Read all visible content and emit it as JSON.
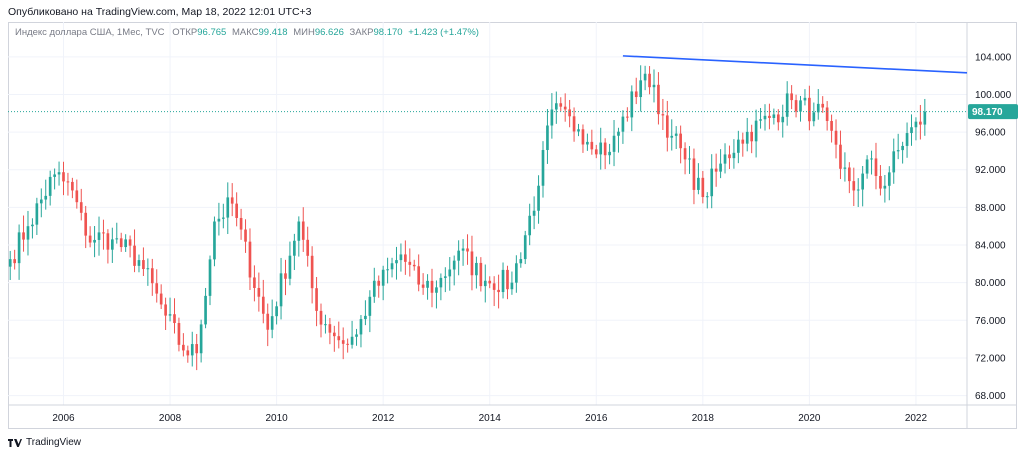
{
  "header": {
    "published": "Опубликовано на TradingView.com, Мар 18, 2022 12:01 UTC+3"
  },
  "legend": {
    "symbol": "Индекс доллара США, 1Мес, TVC",
    "open_label": "ОТКР",
    "open_value": "96.765",
    "high_label": "МАКС",
    "high_value": "99.418",
    "low_label": "МИН",
    "low_value": "96.626",
    "close_label": "ЗАКР",
    "close_value": "98.170",
    "change": "+1.423 (+1.47%)"
  },
  "footer": {
    "brand": "TradingView"
  },
  "colors": {
    "up": "#26a69a",
    "down": "#ef5350",
    "trendline": "#2962ff",
    "price_label_bg": "#26a69a"
  },
  "chart_data": {
    "type": "candlestick",
    "interval": "1 month",
    "x_range": [
      "2005-01",
      "2023-01"
    ],
    "ylim": [
      67,
      106
    ],
    "y_ticks": [
      "104.000",
      "100.000",
      "96.000",
      "92.000",
      "88.000",
      "84.000",
      "80.000",
      "76.000",
      "72.000",
      "68.000"
    ],
    "y_tick_values": [
      104,
      100,
      96,
      92,
      88,
      84,
      80,
      76,
      72,
      68
    ],
    "x_ticks": [
      "2006",
      "2008",
      "2010",
      "2012",
      "2014",
      "2016",
      "2018",
      "2020",
      "2022"
    ],
    "x_tick_years": [
      2006,
      2008,
      2010,
      2012,
      2014,
      2016,
      2018,
      2020,
      2022
    ],
    "last_price": {
      "value": 98.17,
      "label": "98.170"
    },
    "trendline": {
      "start": {
        "date": "2016-07",
        "value": 104.1
      },
      "end": {
        "date": "2023-01",
        "value": 102.3
      }
    },
    "anchors": [
      [
        "2005-01",
        82.5
      ],
      [
        "2005-05",
        86.0
      ],
      [
        "2005-11",
        91.5
      ],
      [
        "2006-03",
        89.8
      ],
      [
        "2006-06",
        85.0
      ],
      [
        "2006-12",
        84.6
      ],
      [
        "2007-06",
        82.4
      ],
      [
        "2007-12",
        76.5
      ],
      [
        "2008-04",
        72.8
      ],
      [
        "2008-07",
        72.5
      ],
      [
        "2008-11",
        86.5
      ],
      [
        "2009-03",
        88.4
      ],
      [
        "2009-11",
        75.0
      ],
      [
        "2010-06",
        86.5
      ],
      [
        "2010-10",
        77.0
      ],
      [
        "2011-04",
        73.5
      ],
      [
        "2011-07",
        74.5
      ],
      [
        "2011-10",
        78.5
      ],
      [
        "2012-05",
        83.0
      ],
      [
        "2012-09",
        79.8
      ],
      [
        "2013-01",
        79.5
      ],
      [
        "2013-06",
        83.4
      ],
      [
        "2013-12",
        80.2
      ],
      [
        "2014-06",
        80.0
      ],
      [
        "2014-12",
        90.3
      ],
      [
        "2015-03",
        98.4
      ],
      [
        "2015-09",
        96.3
      ],
      [
        "2016-04",
        93.9
      ],
      [
        "2016-11",
        101.5
      ],
      [
        "2016-12",
        102.2
      ],
      [
        "2017-06",
        95.6
      ],
      [
        "2017-09",
        93.1
      ],
      [
        "2018-01",
        89.1
      ],
      [
        "2018-04",
        91.8
      ],
      [
        "2018-09",
        95.2
      ],
      [
        "2019-04",
        97.5
      ],
      [
        "2019-09",
        99.4
      ],
      [
        "2020-02",
        98.1
      ],
      [
        "2020-03",
        99.0
      ],
      [
        "2020-08",
        92.1
      ],
      [
        "2020-12",
        89.9
      ],
      [
        "2021-03",
        93.2
      ],
      [
        "2021-05",
        90.0
      ],
      [
        "2021-11",
        95.9
      ],
      [
        "2022-02",
        96.8
      ],
      [
        "2022-03",
        98.17
      ]
    ]
  }
}
